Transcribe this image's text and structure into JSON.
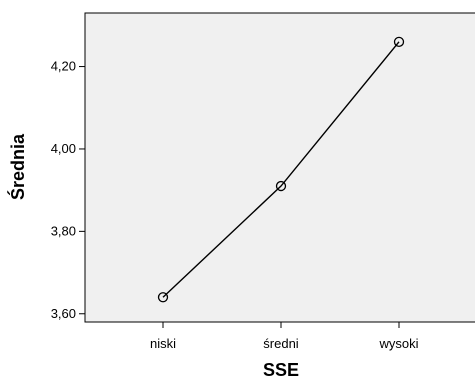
{
  "chart_data": {
    "type": "line",
    "categories": [
      "niski",
      "średni",
      "wysoki"
    ],
    "values": [
      3.64,
      3.91,
      4.26
    ],
    "y_tick_labels": [
      "3,60",
      "3,80",
      "4,00",
      "4,20"
    ],
    "y_ticks": [
      3.6,
      3.8,
      4.0,
      4.2
    ],
    "ylim": [
      3.58,
      4.33
    ],
    "xlabel": "SSE",
    "ylabel": "Średnia",
    "grid": false,
    "markers": "open-circle"
  }
}
